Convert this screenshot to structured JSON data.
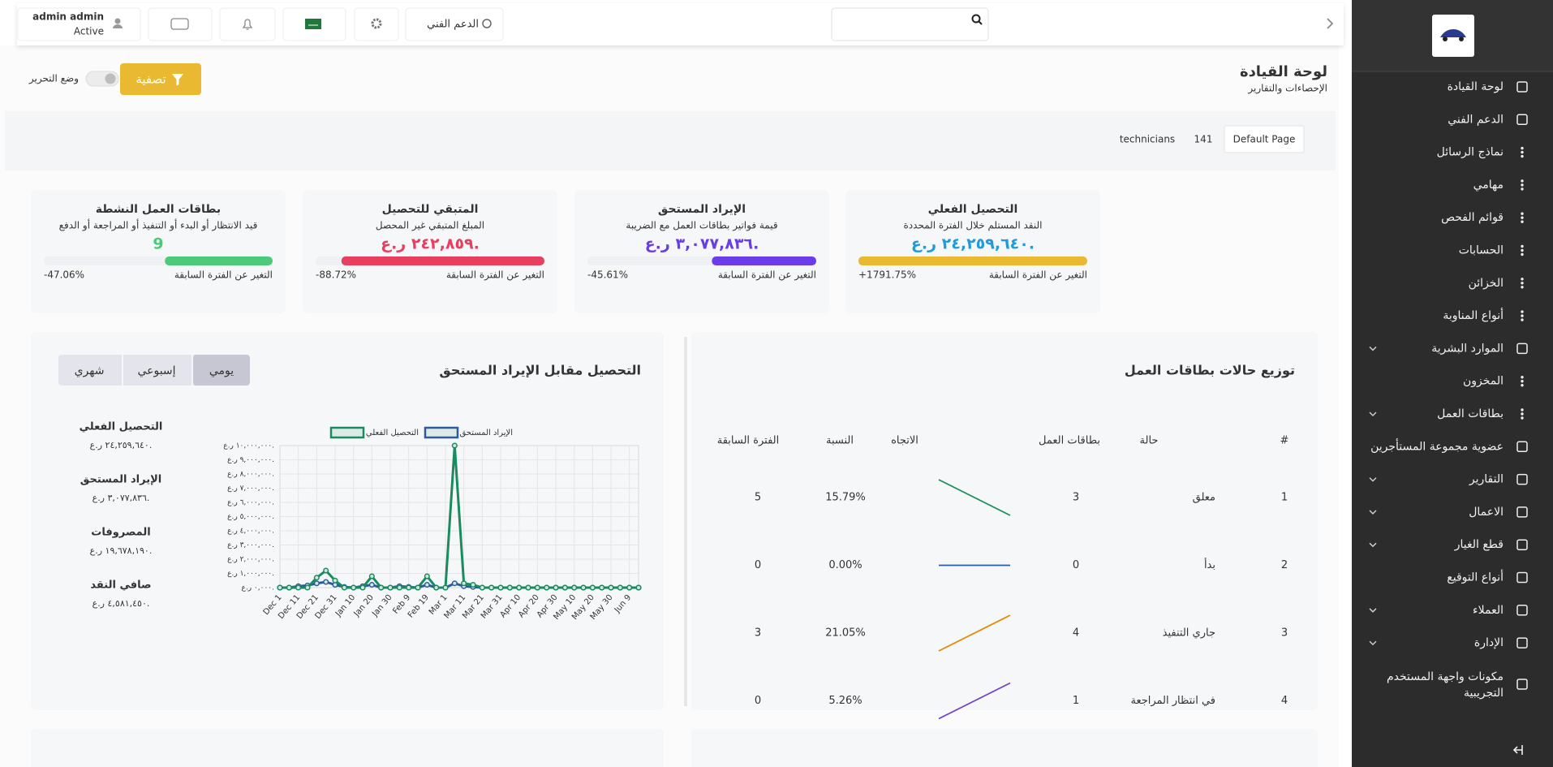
{
  "sidebar": {
    "menu": [
      {
        "label": "لوحة القيادة",
        "expandable": false
      },
      {
        "label": "الدعم الفني",
        "expandable": false
      },
      {
        "label": "نماذج الرسائل",
        "expandable": false
      },
      {
        "label": "مهامي",
        "expandable": false
      },
      {
        "label": "قوائم الفحص",
        "expandable": false
      },
      {
        "label": "الحسابات",
        "expandable": false
      },
      {
        "label": "الخزائن",
        "expandable": false
      },
      {
        "label": "أنواع المناوبة",
        "expandable": false
      },
      {
        "label": "الموارد البشرية",
        "expandable": true
      },
      {
        "label": "المخزون",
        "expandable": false
      },
      {
        "label": "بطاقات العمل",
        "expandable": true
      },
      {
        "label": "عضوية مجموعة المستأجرين",
        "expandable": false
      },
      {
        "label": "التقارير",
        "expandable": true
      },
      {
        "label": "الاعمال",
        "expandable": true
      },
      {
        "label": "قطع الغيار",
        "expandable": true
      },
      {
        "label": "أنواع التوقيع",
        "expandable": false
      },
      {
        "label": "العملاء",
        "expandable": true
      },
      {
        "label": "الإدارة",
        "expandable": true
      },
      {
        "label_lines": [
          "مكونات واجهة المستخدم",
          "التجريبية"
        ],
        "expandable": false
      }
    ]
  },
  "topbar": {
    "support": "الدعم الفني",
    "user_name": "admin admin",
    "user_status": "Active"
  },
  "header": {
    "title": "لوحة القيادة",
    "subtitle": "الإحصاءات والتقارير",
    "filter": "تصفية",
    "edit_mode": "وضع التحرير"
  },
  "tabs": [
    "Default Page",
    "141",
    "technicians"
  ],
  "kpis": [
    {
      "title": "التحصيل الفعلي",
      "description": "النقد المستلم خلال الفترة المحددة",
      "value": "٢٤,٢٥٩,٦٤٠ ر.ع.",
      "change_caption": "التغير عن الفترة السابقة",
      "change": 1791.75,
      "change_label": "+1791.75%",
      "color": "#e8b931",
      "value_color": "#1e9be0"
    },
    {
      "title": "الإيراد المستحق",
      "description": "قيمة فواتير بطاقات العمل مع الضريبة",
      "value": "٣,٠٧٧,٨٣٦ ر.ع.",
      "change_caption": "التغير عن الفترة السابقة",
      "change": -45.61,
      "change_label": "-45.61%",
      "color": "#6a3de8",
      "value_color": "#6a3de8"
    },
    {
      "title": "المتبقي للتحصيل",
      "description": "المبلغ المتبقي غير المحصل",
      "value": "٢٤٢,٨٥٩ ر.ع.",
      "change_caption": "التغير عن الفترة السابقة",
      "change": -88.72,
      "change_label": "-88.72%",
      "color": "#e83e5f",
      "value_color": "#e83e5f"
    },
    {
      "title": "بطاقات العمل النشطة",
      "description": "قيد الانتظار أو البدء أو التنفيذ أو المراجعة أو الدفع",
      "value": "9",
      "change_caption": "التغير عن الفترة السابقة",
      "change": -47.06,
      "change_label": "-47.06%",
      "color": "#4cc97a",
      "value_color": "#4cc97a"
    }
  ],
  "chart_data": {
    "type": "line",
    "title": "التحصيل مقابل الإيراد المستحق",
    "categories": [
      "Dec 1",
      null,
      "Dec 11",
      null,
      "Dec 21",
      null,
      "Dec 31",
      null,
      "Jan 10",
      null,
      "Jan 20",
      null,
      "Jan 30",
      null,
      "Feb 9",
      null,
      "Feb 19",
      null,
      "Mar 1",
      null,
      "Mar 11",
      null,
      "Mar 21",
      null,
      "Mar 31",
      null,
      "Apr 10",
      null,
      "Apr 20",
      null,
      "Apr 30",
      null,
      "May 10",
      null,
      "May 20",
      null,
      "May 30",
      null,
      "Jun 9",
      null
    ],
    "series": [
      {
        "name": "الإيراد المستحق",
        "color": "#2f5b9a",
        "values": [
          0,
          0,
          100000,
          150000,
          300000,
          400000,
          200000,
          50000,
          0,
          100000,
          200000,
          0,
          0,
          100000,
          50000,
          0,
          200000,
          0,
          0,
          300000,
          100000,
          50000,
          0,
          0,
          0,
          0,
          0,
          0,
          0,
          0,
          0,
          0,
          0,
          0,
          0,
          0,
          0,
          0,
          0,
          0
        ]
      },
      {
        "name": "التحصيل الفعلي",
        "color": "#1a8a5f",
        "values": [
          0,
          0,
          0,
          0,
          700000,
          1200000,
          500000,
          0,
          0,
          0,
          800000,
          0,
          0,
          0,
          0,
          0,
          800000,
          0,
          0,
          10000000,
          300000,
          200000,
          0,
          0,
          0,
          0,
          0,
          0,
          0,
          0,
          0,
          0,
          0,
          0,
          0,
          0,
          0,
          0,
          0,
          0
        ]
      }
    ],
    "ylim": [
      0,
      10000000
    ],
    "yticks": [
      {
        "value": 0,
        "label": "٠,٠٠٠ ر.ع."
      },
      {
        "value": 1000000,
        "label": "١,٠٠٠,٠٠٠ ر.ع."
      },
      {
        "value": 2000000,
        "label": "٢,٠٠٠,٠٠٠ ر.ع."
      },
      {
        "value": 3000000,
        "label": "٣,٠٠٠,٠٠٠ ر.ع."
      },
      {
        "value": 4000000,
        "label": "٤,٠٠٠,٠٠٠ ر.ع."
      },
      {
        "value": 5000000,
        "label": "٥,٠٠٠,٠٠٠ ر.ع."
      },
      {
        "value": 6000000,
        "label": "٦,٠٠٠,٠٠٠ ر.ع."
      },
      {
        "value": 7000000,
        "label": "٧,٠٠٠,٠٠٠ ر.ع."
      },
      {
        "value": 8000000,
        "label": "٨,٠٠٠,٠٠٠ ر.ع."
      },
      {
        "value": 9000000,
        "label": "٩,٠٠٠,٠٠٠ ر.ع."
      },
      {
        "value": 10000000,
        "label": "١٠,٠٠٠,٠٠٠ ر.ع."
      }
    ],
    "grid": true
  },
  "chart_panel": {
    "buttons": [
      "يومي",
      "إسبوعي",
      "شهري"
    ],
    "summary": [
      {
        "label": "التحصيل الفعلي",
        "value": "٢٤,٢٥٩,٦٤٠ ر.ع."
      },
      {
        "label": "الإيراد المستحق",
        "value": "٣,٠٧٧,٨٣٦ ر.ع."
      },
      {
        "label": "المصروفات",
        "value": "١٩,٦٧٨,١٩٠ ر.ع."
      },
      {
        "label": "صافي النقد",
        "value": "٤,٥٨١,٤٥٠ ر.ع."
      }
    ]
  },
  "table": {
    "title": "توزيع حالات بطاقات العمل",
    "headers": [
      "#",
      "حالة",
      "بطاقات العمل",
      "الاتجاه",
      "النسبة",
      "الفترة السابقة"
    ],
    "rows": [
      {
        "index": 1,
        "status": "معلق",
        "count": 3,
        "trend_color": "#1a8f5a",
        "percent": "15.79%",
        "previous": 5
      },
      {
        "index": 2,
        "status": "بدأ",
        "count": 0,
        "trend_color": "#2b5ca8",
        "percent": "0.00%",
        "previous": 0
      },
      {
        "index": 3,
        "status": "جاري التنفيذ",
        "count": 4,
        "trend_color": "#e08c00",
        "percent": "21.05%",
        "previous": 3
      },
      {
        "index": 4,
        "status": "في انتظار المراجعة",
        "count": 1,
        "trend_color": "#6f42c1",
        "percent": "5.26%",
        "previous": 0
      }
    ]
  }
}
